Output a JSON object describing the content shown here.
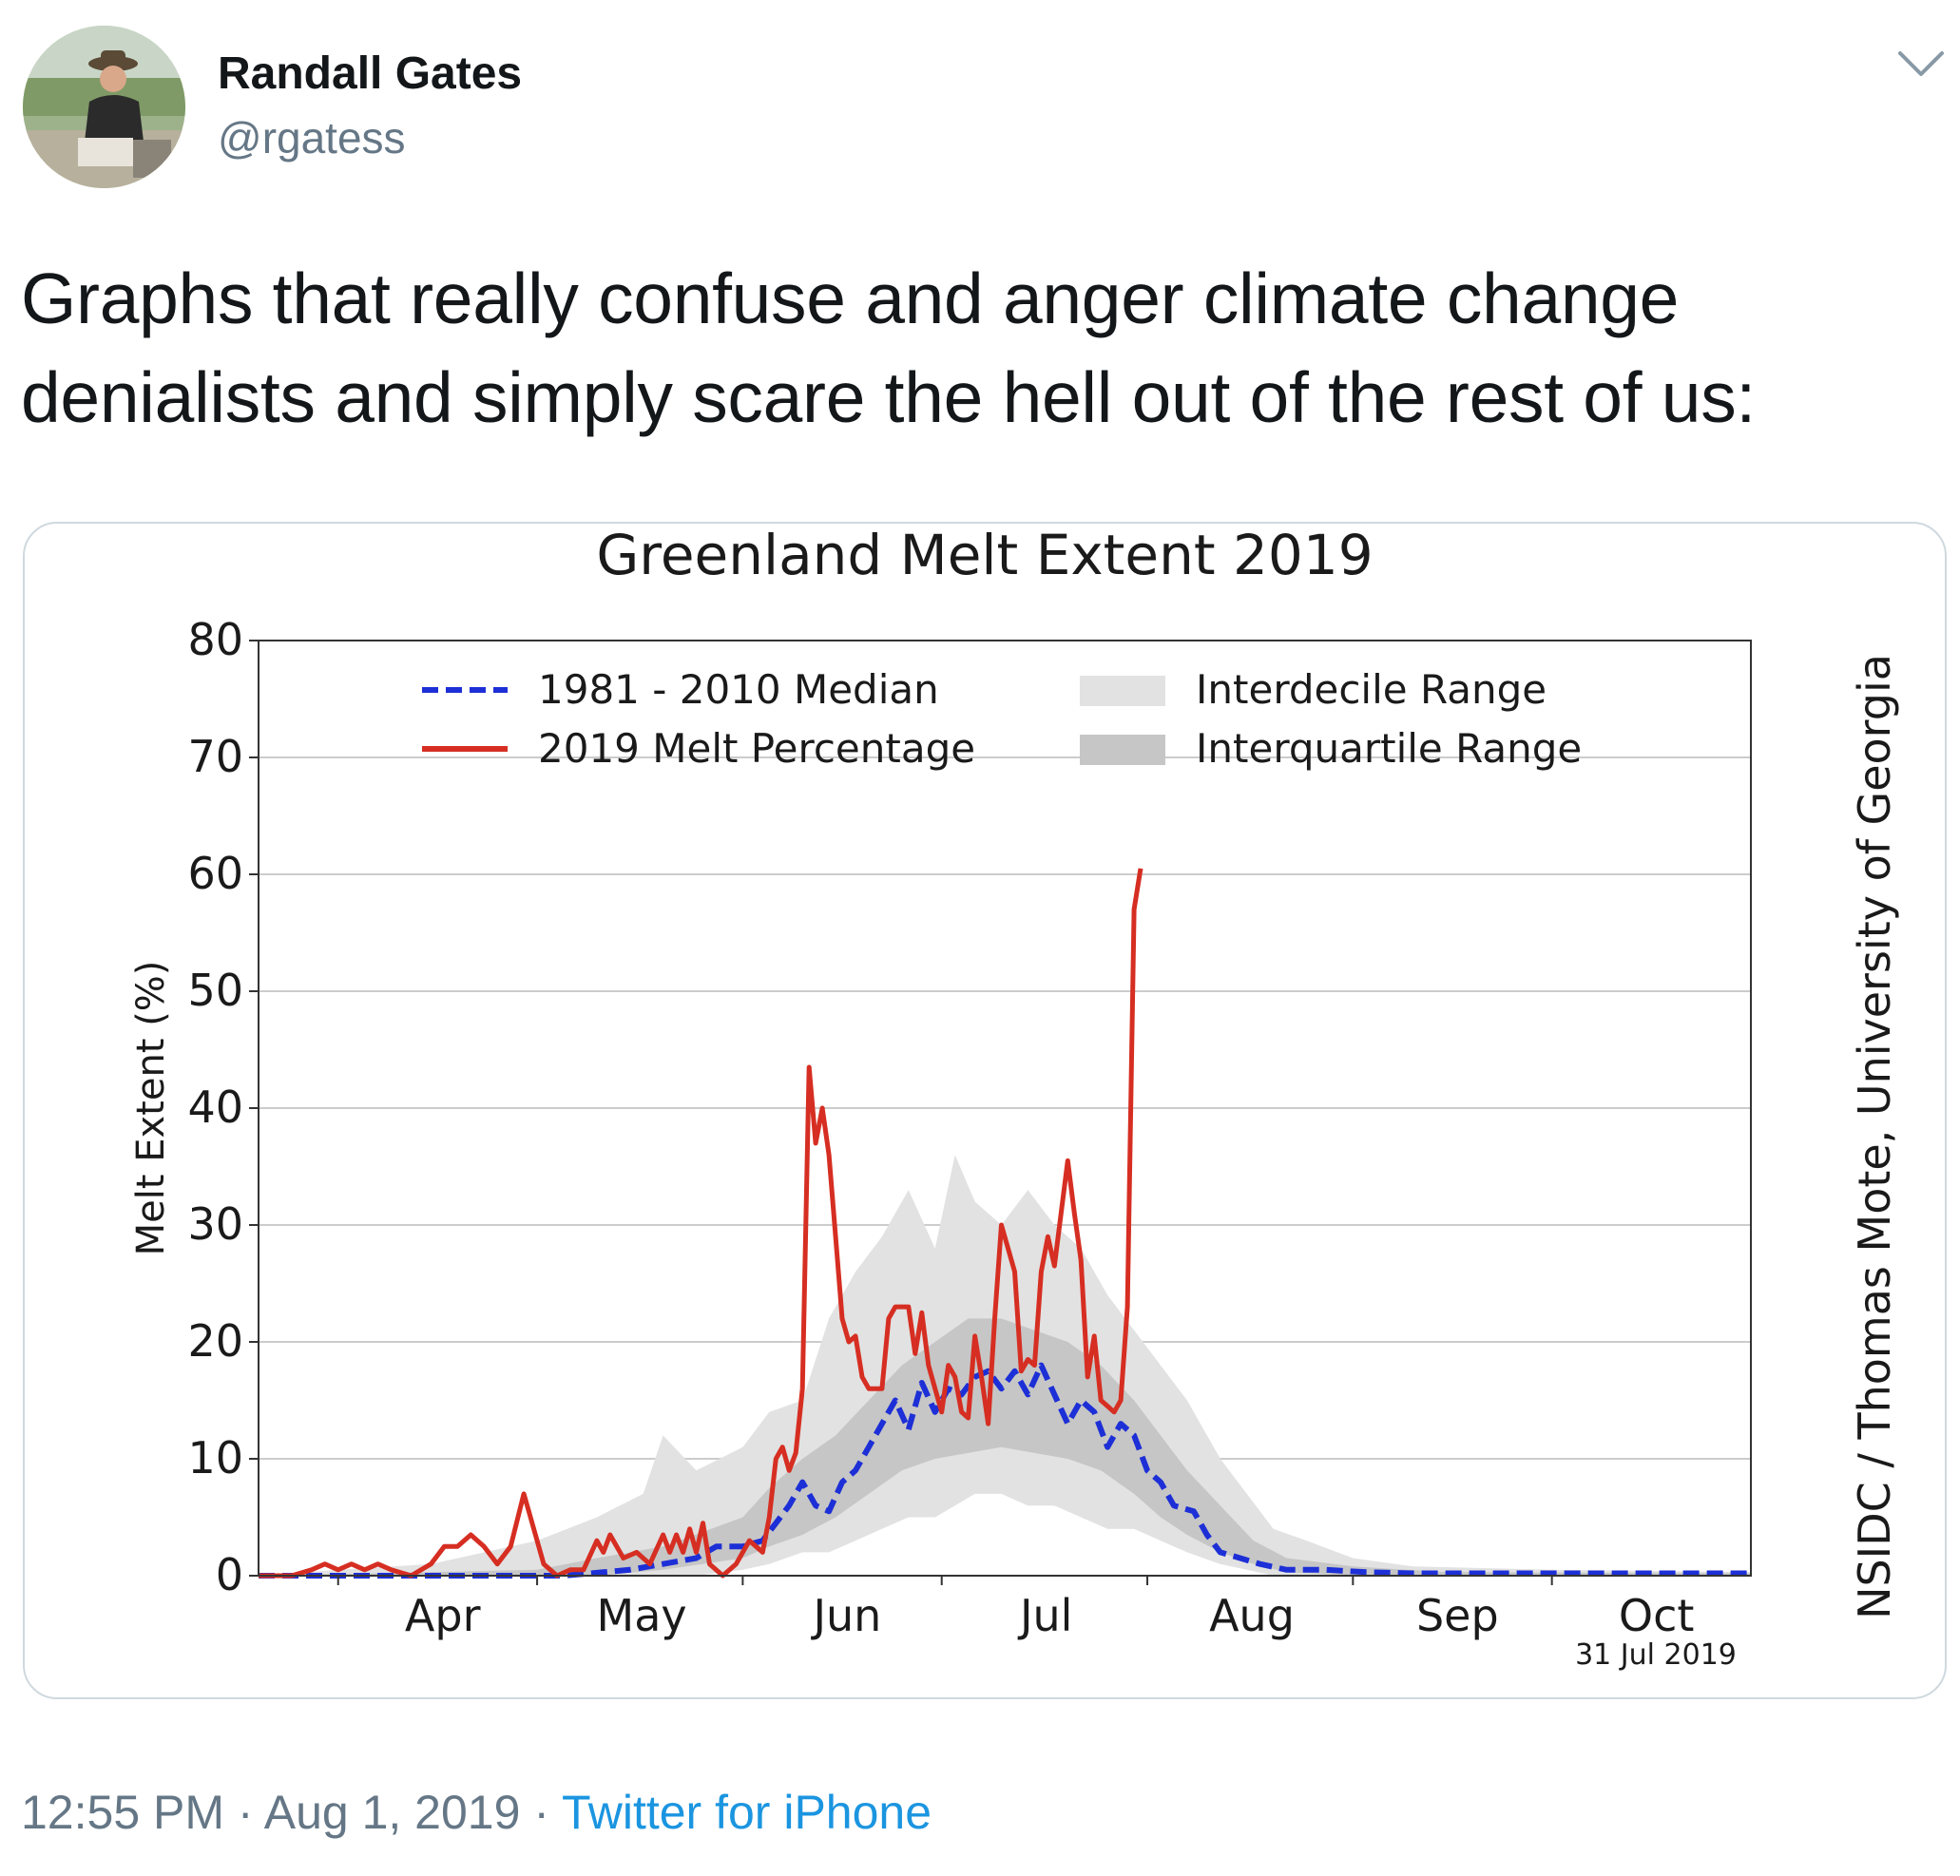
{
  "tweet": {
    "author_name": "Randall Gates",
    "author_handle": "@rgatess",
    "text": "Graphs that really confuse and anger climate change denialists and simply scare the hell out of the rest of us:",
    "time": "12:55 PM",
    "separator": "·",
    "date": "Aug 1, 2019",
    "source": "Twitter for iPhone",
    "icons": [
      "avatar",
      "chevron-down-icon"
    ]
  },
  "chart_data": {
    "type": "line",
    "title": "Greenland Melt Extent 2019",
    "xlabel": "",
    "ylabel": "Melt Extent (%)",
    "ylim": [
      0,
      80
    ],
    "xlim": [
      "Mar 20",
      "Oct 31"
    ],
    "yticks": [
      "0",
      "10",
      "20",
      "30",
      "40",
      "50",
      "60",
      "70",
      "80"
    ],
    "xticks": [
      {
        "label": "Apr",
        "date": "Apr 1"
      },
      {
        "label": "May",
        "date": "May 1"
      },
      {
        "label": "Jun",
        "date": "Jun 1"
      },
      {
        "label": "Jul",
        "date": "Jul 1"
      },
      {
        "label": "Aug",
        "date": "Aug 1"
      },
      {
        "label": "Sep",
        "date": "Sep 1"
      },
      {
        "label": "Oct",
        "date": "Oct 1"
      }
    ],
    "grid": "horizontal",
    "legend_position": "top",
    "date_stamp": "31 Jul 2019",
    "credit": "NSIDC / Thomas Mote, University of Georgia",
    "colors": {
      "median": "#1d2fd6",
      "melt_2019": "#d62e22",
      "interdecile": "#e2e2e2",
      "interquartile": "#c6c6c6"
    },
    "series": [
      {
        "name": "2019 Melt Percentage",
        "style": "solid",
        "points": [
          [
            "Mar 20",
            0
          ],
          [
            "Mar 25",
            0
          ],
          [
            "Mar 28",
            0.5
          ],
          [
            "Mar 30",
            1
          ],
          [
            "Apr 1",
            0.5
          ],
          [
            "Apr 3",
            1
          ],
          [
            "Apr 5",
            0.5
          ],
          [
            "Apr 7",
            1
          ],
          [
            "Apr 9",
            0.5
          ],
          [
            "Apr 12",
            0
          ],
          [
            "Apr 15",
            1
          ],
          [
            "Apr 17",
            2.5
          ],
          [
            "Apr 19",
            2.5
          ],
          [
            "Apr 21",
            3.5
          ],
          [
            "Apr 23",
            2.5
          ],
          [
            "Apr 25",
            1
          ],
          [
            "Apr 27",
            2.5
          ],
          [
            "Apr 29",
            7
          ],
          [
            "Apr 30",
            5
          ],
          [
            "May 2",
            1
          ],
          [
            "May 4",
            0
          ],
          [
            "May 6",
            0.5
          ],
          [
            "May 8",
            0.5
          ],
          [
            "May 10",
            3
          ],
          [
            "May 11",
            2
          ],
          [
            "May 12",
            3.5
          ],
          [
            "May 14",
            1.5
          ],
          [
            "May 16",
            2
          ],
          [
            "May 18",
            1
          ],
          [
            "May 20",
            3.5
          ],
          [
            "May 21",
            2
          ],
          [
            "May 22",
            3.5
          ],
          [
            "May 23",
            2
          ],
          [
            "May 24",
            4
          ],
          [
            "May 25",
            2
          ],
          [
            "May 26",
            4.5
          ],
          [
            "May 27",
            1
          ],
          [
            "May 29",
            0
          ],
          [
            "May 31",
            1
          ],
          [
            "Jun 2",
            3
          ],
          [
            "Jun 4",
            2
          ],
          [
            "Jun 5",
            5
          ],
          [
            "Jun 6",
            10
          ],
          [
            "Jun 7",
            11
          ],
          [
            "Jun 8",
            9
          ],
          [
            "Jun 9",
            10.5
          ],
          [
            "Jun 10",
            16
          ],
          [
            "Jun 11",
            43.5
          ],
          [
            "Jun 12",
            37
          ],
          [
            "Jun 13",
            40
          ],
          [
            "Jun 14",
            36
          ],
          [
            "Jun 15",
            29
          ],
          [
            "Jun 16",
            22
          ],
          [
            "Jun 17",
            20
          ],
          [
            "Jun 18",
            20.5
          ],
          [
            "Jun 19",
            17
          ],
          [
            "Jun 20",
            16
          ],
          [
            "Jun 21",
            16
          ],
          [
            "Jun 22",
            16
          ],
          [
            "Jun 23",
            22
          ],
          [
            "Jun 24",
            23
          ],
          [
            "Jun 25",
            23
          ],
          [
            "Jun 26",
            23
          ],
          [
            "Jun 27",
            19
          ],
          [
            "Jun 28",
            22.5
          ],
          [
            "Jun 29",
            18
          ],
          [
            "Jun 30",
            16
          ],
          [
            "Jul 1",
            14
          ],
          [
            "Jul 2",
            18
          ],
          [
            "Jul 3",
            17
          ],
          [
            "Jul 4",
            14
          ],
          [
            "Jul 5",
            13.5
          ],
          [
            "Jul 6",
            20.5
          ],
          [
            "Jul 7",
            17
          ],
          [
            "Jul 8",
            13
          ],
          [
            "Jul 9",
            22
          ],
          [
            "Jul 10",
            30
          ],
          [
            "Jul 11",
            28
          ],
          [
            "Jul 12",
            26
          ],
          [
            "Jul 13",
            17.5
          ],
          [
            "Jul 14",
            18.5
          ],
          [
            "Jul 15",
            18
          ],
          [
            "Jul 16",
            26
          ],
          [
            "Jul 17",
            29
          ],
          [
            "Jul 18",
            26.5
          ],
          [
            "Jul 19",
            31
          ],
          [
            "Jul 20",
            35.5
          ],
          [
            "Jul 21",
            31
          ],
          [
            "Jul 22",
            27
          ],
          [
            "Jul 23",
            17
          ],
          [
            "Jul 24",
            20.5
          ],
          [
            "Jul 25",
            15
          ],
          [
            "Jul 26",
            14.5
          ],
          [
            "Jul 27",
            14
          ],
          [
            "Jul 28",
            15
          ],
          [
            "Jul 29",
            23
          ],
          [
            "Jul 30",
            57
          ],
          [
            "Jul 31",
            60.5
          ]
        ]
      },
      {
        "name": "1981 - 2010 Median",
        "style": "dashed",
        "points": [
          [
            "Mar 20",
            0
          ],
          [
            "May 5",
            0
          ],
          [
            "May 15",
            0.5
          ],
          [
            "May 20",
            1
          ],
          [
            "May 25",
            1.5
          ],
          [
            "May 28",
            2.5
          ],
          [
            "Jun 1",
            2.5
          ],
          [
            "Jun 4",
            3
          ],
          [
            "Jun 6",
            4.5
          ],
          [
            "Jun 8",
            6
          ],
          [
            "Jun 10",
            8
          ],
          [
            "Jun 12",
            6
          ],
          [
            "Jun 14",
            5.5
          ],
          [
            "Jun 16",
            8
          ],
          [
            "Jun 18",
            9
          ],
          [
            "Jun 20",
            11
          ],
          [
            "Jun 22",
            13
          ],
          [
            "Jun 24",
            15
          ],
          [
            "Jun 26",
            12.5
          ],
          [
            "Jun 28",
            16.5
          ],
          [
            "Jun 30",
            14
          ],
          [
            "Jul 2",
            16
          ],
          [
            "Jul 4",
            15.5
          ],
          [
            "Jul 6",
            17
          ],
          [
            "Jul 8",
            17.5
          ],
          [
            "Jul 10",
            16
          ],
          [
            "Jul 12",
            17.5
          ],
          [
            "Jul 14",
            15.5
          ],
          [
            "Jul 16",
            18
          ],
          [
            "Jul 18",
            15.5
          ],
          [
            "Jul 20",
            13
          ],
          [
            "Jul 22",
            15
          ],
          [
            "Jul 24",
            14
          ],
          [
            "Jul 26",
            11
          ],
          [
            "Jul 28",
            13
          ],
          [
            "Jul 30",
            12
          ],
          [
            "Aug 1",
            9
          ],
          [
            "Aug 3",
            8
          ],
          [
            "Aug 5",
            6
          ],
          [
            "Aug 8",
            5.5
          ],
          [
            "Aug 10",
            3.5
          ],
          [
            "Aug 12",
            2
          ],
          [
            "Aug 15",
            1.5
          ],
          [
            "Aug 18",
            1
          ],
          [
            "Aug 22",
            0.5
          ],
          [
            "Aug 28",
            0.5
          ],
          [
            "Sep 3",
            0.3
          ],
          [
            "Sep 10",
            0.2
          ],
          [
            "Oct 31",
            0.2
          ]
        ]
      }
    ],
    "bands": [
      {
        "name": "Interdecile Range",
        "points": [
          [
            "Mar 20",
            0,
            0
          ],
          [
            "Apr 1",
            0,
            0.5
          ],
          [
            "Apr 15",
            0,
            1
          ],
          [
            "May 1",
            0,
            3
          ],
          [
            "May 10",
            0,
            5
          ],
          [
            "May 17",
            0,
            7
          ],
          [
            "May 20",
            0,
            12
          ],
          [
            "May 25",
            0,
            9
          ],
          [
            "Jun 1",
            0.5,
            11
          ],
          [
            "Jun 5",
            1,
            14
          ],
          [
            "Jun 10",
            2,
            15
          ],
          [
            "Jun 14",
            2,
            22
          ],
          [
            "Jun 18",
            3,
            26
          ],
          [
            "Jun 22",
            4,
            29
          ],
          [
            "Jun 26",
            5,
            33
          ],
          [
            "Jun 30",
            5,
            28
          ],
          [
            "Jul 3",
            6,
            36
          ],
          [
            "Jul 6",
            7,
            32
          ],
          [
            "Jul 10",
            7,
            30
          ],
          [
            "Jul 14",
            6,
            33
          ],
          [
            "Jul 18",
            6,
            30
          ],
          [
            "Jul 22",
            5,
            28
          ],
          [
            "Jul 26",
            4,
            24
          ],
          [
            "Jul 30",
            4,
            21
          ],
          [
            "Aug 3",
            3,
            18
          ],
          [
            "Aug 7",
            2,
            15
          ],
          [
            "Aug 12",
            1,
            10
          ],
          [
            "Aug 16",
            0.5,
            7
          ],
          [
            "Aug 20",
            0,
            4
          ],
          [
            "Aug 25",
            0,
            3
          ],
          [
            "Sep 1",
            0,
            1.5
          ],
          [
            "Sep 10",
            0,
            0.8
          ],
          [
            "Oct 1",
            0,
            0.5
          ],
          [
            "Oct 31",
            0,
            0.3
          ]
        ]
      },
      {
        "name": "Interquartile Range",
        "points": [
          [
            "Mar 20",
            0,
            0
          ],
          [
            "May 1",
            0,
            0.5
          ],
          [
            "May 10",
            0,
            1.5
          ],
          [
            "May 20",
            0.5,
            2.5
          ],
          [
            "Jun 1",
            1.5,
            5
          ],
          [
            "Jun 5",
            2.5,
            7.5
          ],
          [
            "Jun 10",
            3.5,
            10
          ],
          [
            "Jun 15",
            5,
            12
          ],
          [
            "Jun 20",
            7,
            15
          ],
          [
            "Jun 25",
            9,
            18
          ],
          [
            "Jun 30",
            10,
            20
          ],
          [
            "Jul 5",
            10.5,
            22
          ],
          [
            "Jul 10",
            11,
            22
          ],
          [
            "Jul 15",
            10.5,
            21
          ],
          [
            "Jul 20",
            10,
            20
          ],
          [
            "Jul 25",
            9,
            18
          ],
          [
            "Jul 30",
            7,
            15
          ],
          [
            "Aug 3",
            5,
            12
          ],
          [
            "Aug 7",
            3.5,
            9
          ],
          [
            "Aug 12",
            2,
            6
          ],
          [
            "Aug 17",
            1,
            3
          ],
          [
            "Aug 22",
            0.3,
            1.5
          ],
          [
            "Sep 1",
            0,
            0.8
          ],
          [
            "Sep 15",
            0,
            0.3
          ],
          [
            "Oct 31",
            0,
            0.2
          ]
        ]
      }
    ]
  }
}
